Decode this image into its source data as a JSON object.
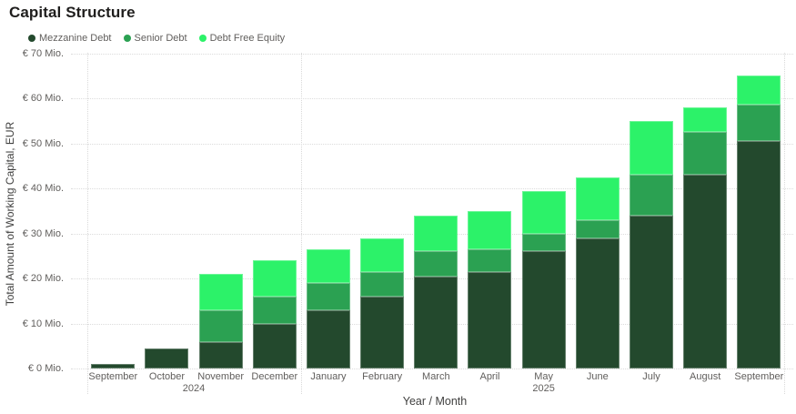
{
  "title": "Capital Structure",
  "colors": {
    "mezzanine_debt": "#23492d",
    "senior_debt": "#2ba152",
    "debt_free_equity": "#2cf269",
    "grid": "#dcdcdc",
    "axis_text": "#605e5c",
    "title_text": "#1f1e1d"
  },
  "chart_data": {
    "type": "bar",
    "stacked": true,
    "title": "Capital Structure",
    "xlabel": "Year / Month",
    "ylabel": "Total Amount of Working Capital, EUR",
    "ylim": [
      0,
      70
    ],
    "ytick_step": 10,
    "ytick_labels": [
      "€ 0 Mio.",
      "€ 10 Mio.",
      "€ 20 Mio.",
      "€ 30 Mio.",
      "€ 40 Mio.",
      "€ 50 Mio.",
      "€ 60 Mio.",
      "€ 70 Mio."
    ],
    "grid": true,
    "legend_position": "top-left",
    "categories": [
      "September",
      "October",
      "November",
      "December",
      "January",
      "February",
      "March",
      "April",
      "May",
      "June",
      "July",
      "August",
      "September"
    ],
    "year_groups": [
      {
        "label": "2024",
        "from": 0,
        "to": 3
      },
      {
        "label": "2025",
        "from": 4,
        "to": 12
      }
    ],
    "series": [
      {
        "name": "Mezzanine Debt",
        "color": "#23492d",
        "values": [
          1,
          4.5,
          6,
          10,
          13,
          16,
          20.5,
          21.5,
          26,
          29,
          34,
          43,
          50.5
        ]
      },
      {
        "name": "Senior Debt",
        "color": "#2ba152",
        "values": [
          0,
          0,
          7,
          6,
          6,
          5.5,
          5.5,
          5,
          4,
          4,
          9,
          9.5,
          8
        ]
      },
      {
        "name": "Debt Free Equity",
        "color": "#2cf269",
        "values": [
          0,
          0,
          8,
          8,
          7.5,
          7.5,
          8,
          8.5,
          9.5,
          9.5,
          12,
          5.5,
          6.5
        ]
      }
    ],
    "totals": [
      1,
      4.5,
      21,
      24,
      26.5,
      29,
      34,
      35,
      39.5,
      42.5,
      55,
      58,
      65
    ]
  }
}
